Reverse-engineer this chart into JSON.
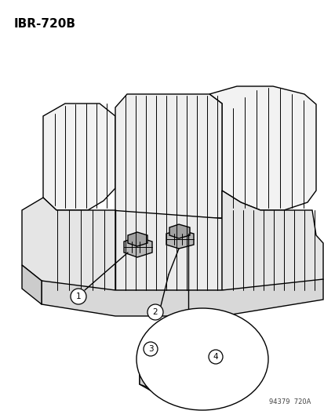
{
  "title_top_left": "IBR-720B",
  "bottom_right_text": "94379  720A",
  "background_color": "#ffffff",
  "line_color": "#000000",
  "fig_width": 4.14,
  "fig_height": 5.33,
  "dpi": 100,
  "callout_labels": [
    "1",
    "2",
    "3",
    "4"
  ]
}
